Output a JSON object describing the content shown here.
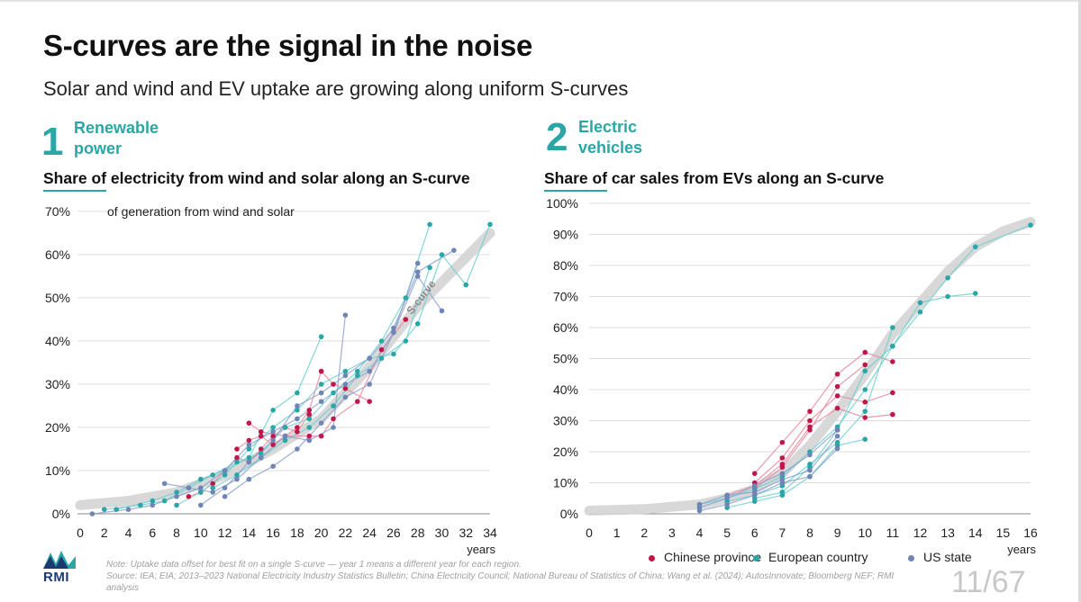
{
  "title": "S-curves are the signal in the noise",
  "subtitle": "Solar and wind and EV uptake are growing along uniform S-curves",
  "panel1": {
    "number": "1",
    "title": "Renewable power"
  },
  "panel2": {
    "number": "2",
    "title": "Electric vehicles"
  },
  "note": "Note: Uptake data offset for best fit on a single S-curve — year 1 means a different year for each region.",
  "source": "Source: IEA; EIA; 2013–2023 National Electricity Industry Statistics Bulletin; China Electricity Council; National Bureau of Statistics of China; Wang et al. (2024); AutosInnovate; Bloomberg NEF; RMI analysis",
  "logo": "RMI",
  "page_indicator": "11/67",
  "colors": {
    "accent": "#2aa6a6",
    "chinese": "#c0174a",
    "european": "#2aa6a6",
    "us": "#6f85b8",
    "scurve": "#d4d4d4"
  },
  "legend": [
    {
      "name": "Chinese province",
      "color": "#c0174a"
    },
    {
      "name": "European country",
      "color": "#2aa6a6"
    },
    {
      "name": "US state",
      "color": "#6f85b8"
    }
  ],
  "chart_data": [
    {
      "type": "line",
      "title": "Share of electricity from wind and solar along an S-curve",
      "ylabel": "of generation from wind and solar",
      "xlabel": "years",
      "xlim": [
        0,
        34
      ],
      "ylim": [
        0,
        70
      ],
      "x_ticks": [
        0,
        2,
        4,
        6,
        8,
        10,
        12,
        14,
        16,
        18,
        20,
        22,
        24,
        26,
        28,
        30,
        32,
        34
      ],
      "y_ticks": [
        0,
        10,
        20,
        30,
        40,
        50,
        60,
        70
      ],
      "y_tick_labels": [
        "0%",
        "10%",
        "20%",
        "30%",
        "40%",
        "50%",
        "60%",
        "70%"
      ],
      "annotation": "S-curve",
      "scurve": [
        [
          0,
          2
        ],
        [
          4,
          3
        ],
        [
          8,
          5
        ],
        [
          12,
          9
        ],
        [
          16,
          15
        ],
        [
          20,
          22
        ],
        [
          24,
          34
        ],
        [
          28,
          48
        ],
        [
          34,
          65
        ]
      ],
      "series": [
        {
          "group": "Chinese province",
          "points": [
            [
              13,
              15
            ],
            [
              14,
              17
            ],
            [
              15,
              18
            ],
            [
              16,
              16
            ],
            [
              18,
              20
            ],
            [
              19,
              24
            ],
            [
              20,
              33
            ],
            [
              21,
              30
            ],
            [
              22,
              29
            ],
            [
              24,
              26
            ]
          ]
        },
        {
          "group": "Chinese province",
          "points": [
            [
              14,
              21
            ],
            [
              15,
              19
            ],
            [
              17,
              18
            ],
            [
              19,
              18
            ],
            [
              20,
              18
            ],
            [
              21,
              22
            ],
            [
              23,
              26
            ],
            [
              25,
              38
            ],
            [
              27,
              45
            ]
          ]
        },
        {
          "group": "Chinese province",
          "points": [
            [
              9,
              4
            ],
            [
              10,
              5
            ],
            [
              11,
              7
            ],
            [
              12,
              10
            ],
            [
              13,
              13
            ],
            [
              14,
              12
            ],
            [
              15,
              15
            ],
            [
              16,
              18
            ],
            [
              17,
              20
            ],
            [
              18,
              19
            ],
            [
              19,
              23
            ]
          ]
        },
        {
          "group": "European country",
          "points": [
            [
              2,
              1
            ],
            [
              5,
              2
            ],
            [
              7,
              3
            ],
            [
              9,
              6
            ],
            [
              11,
              9
            ],
            [
              13,
              12
            ],
            [
              15,
              14
            ],
            [
              17,
              20
            ],
            [
              19,
              22
            ],
            [
              21,
              28
            ],
            [
              23,
              33
            ],
            [
              25,
              40
            ],
            [
              27,
              50
            ],
            [
              29,
              67
            ]
          ]
        },
        {
          "group": "European country",
          "points": [
            [
              3,
              1
            ],
            [
              6,
              3
            ],
            [
              8,
              5
            ],
            [
              10,
              8
            ],
            [
              12,
              10
            ],
            [
              14,
              13
            ],
            [
              16,
              24
            ],
            [
              18,
              28
            ],
            [
              20,
              41
            ]
          ]
        },
        {
          "group": "European country",
          "points": [
            [
              8,
              2
            ],
            [
              10,
              5
            ],
            [
              12,
              9
            ],
            [
              14,
              15
            ],
            [
              16,
              20
            ],
            [
              18,
              24
            ],
            [
              20,
              30
            ],
            [
              22,
              33
            ],
            [
              24,
              36
            ],
            [
              26,
              37
            ],
            [
              28,
              44
            ],
            [
              30,
              60
            ],
            [
              32,
              53
            ],
            [
              34,
              67
            ]
          ]
        },
        {
          "group": "European country",
          "points": [
            [
              11,
              6
            ],
            [
              13,
              9
            ],
            [
              15,
              13
            ],
            [
              17,
              17
            ],
            [
              19,
              20
            ],
            [
              21,
              25
            ],
            [
              23,
              32
            ],
            [
              25,
              36
            ],
            [
              27,
              40
            ],
            [
              29,
              57
            ]
          ]
        },
        {
          "group": "US state",
          "points": [
            [
              1,
              0
            ],
            [
              4,
              1
            ],
            [
              6,
              2
            ],
            [
              8,
              4
            ],
            [
              10,
              6
            ],
            [
              12,
              10
            ],
            [
              14,
              16
            ],
            [
              16,
              19
            ],
            [
              18,
              22
            ],
            [
              20,
              26
            ],
            [
              22,
              30
            ],
            [
              24,
              33
            ],
            [
              26,
              42
            ],
            [
              28,
              55
            ],
            [
              30,
              47
            ]
          ]
        },
        {
          "group": "US state",
          "points": [
            [
              7,
              7
            ],
            [
              9,
              6
            ],
            [
              11,
              5
            ],
            [
              13,
              8
            ],
            [
              15,
              13
            ],
            [
              17,
              18
            ],
            [
              19,
              17
            ],
            [
              21,
              20
            ],
            [
              22,
              46
            ]
          ]
        },
        {
          "group": "US state",
          "points": [
            [
              10,
              2
            ],
            [
              12,
              6
            ],
            [
              14,
              12
            ],
            [
              16,
              17
            ],
            [
              18,
              25
            ],
            [
              20,
              28
            ],
            [
              22,
              32
            ],
            [
              24,
              36
            ],
            [
              26,
              43
            ],
            [
              28,
              56
            ],
            [
              31,
              61
            ]
          ]
        },
        {
          "group": "US state",
          "points": [
            [
              12,
              4
            ],
            [
              14,
              8
            ],
            [
              16,
              11
            ],
            [
              18,
              15
            ],
            [
              20,
              21
            ],
            [
              22,
              27
            ],
            [
              24,
              30
            ],
            [
              26,
              42
            ],
            [
              28,
              58
            ]
          ]
        }
      ]
    },
    {
      "type": "line",
      "title": "Share of car sales from EVs along an S-curve",
      "xlabel": "years",
      "xlim": [
        0,
        16
      ],
      "ylim": [
        0,
        100
      ],
      "x_ticks": [
        0,
        1,
        2,
        3,
        4,
        5,
        6,
        7,
        8,
        9,
        10,
        11,
        12,
        13,
        14,
        15,
        16
      ],
      "y_ticks": [
        0,
        10,
        20,
        30,
        40,
        50,
        60,
        70,
        80,
        90,
        100
      ],
      "y_tick_labels": [
        "0%",
        "10%",
        "20%",
        "30%",
        "40%",
        "50%",
        "60%",
        "70%",
        "80%",
        "90%",
        "100%"
      ],
      "scurve": [
        [
          0,
          1
        ],
        [
          2,
          1.5
        ],
        [
          4,
          3
        ],
        [
          5,
          5
        ],
        [
          6,
          8
        ],
        [
          7,
          13
        ],
        [
          8,
          22
        ],
        [
          9,
          33
        ],
        [
          10,
          45
        ],
        [
          11,
          58
        ],
        [
          12,
          68
        ],
        [
          13,
          78
        ],
        [
          14,
          86
        ],
        [
          15,
          91
        ],
        [
          16,
          94
        ]
      ],
      "series": [
        {
          "group": "Chinese province",
          "points": [
            [
              6,
              13
            ],
            [
              7,
              23
            ],
            [
              8,
              33
            ],
            [
              9,
              45
            ],
            [
              10,
              52
            ],
            [
              11,
              49
            ]
          ]
        },
        {
          "group": "Chinese province",
          "points": [
            [
              6,
              10
            ],
            [
              7,
              18
            ],
            [
              8,
              30
            ],
            [
              9,
              38
            ],
            [
              10,
              36
            ],
            [
              11,
              39
            ]
          ]
        },
        {
          "group": "Chinese province",
          "points": [
            [
              5,
              6
            ],
            [
              6,
              9
            ],
            [
              7,
              16
            ],
            [
              8,
              28
            ],
            [
              9,
              34
            ],
            [
              10,
              31
            ],
            [
              11,
              32
            ]
          ]
        },
        {
          "group": "Chinese province",
          "points": [
            [
              6,
              8
            ],
            [
              7,
              15
            ],
            [
              8,
              27
            ],
            [
              9,
              41
            ],
            [
              10,
              48
            ]
          ]
        },
        {
          "group": "European country",
          "points": [
            [
              4,
              3
            ],
            [
              5,
              5
            ],
            [
              6,
              8
            ],
            [
              7,
              12
            ],
            [
              8,
              20
            ],
            [
              9,
              28
            ],
            [
              10,
              40
            ],
            [
              11,
              54
            ],
            [
              12,
              68
            ],
            [
              13,
              70
            ],
            [
              14,
              71
            ]
          ]
        },
        {
          "group": "European country",
          "points": [
            [
              5,
              4
            ],
            [
              6,
              6
            ],
            [
              7,
              9
            ],
            [
              8,
              16
            ],
            [
              9,
              23
            ],
            [
              10,
              33
            ],
            [
              11,
              60
            ]
          ]
        },
        {
          "group": "European country",
          "points": [
            [
              6,
              5
            ],
            [
              7,
              7
            ],
            [
              8,
              15
            ],
            [
              9,
              27
            ],
            [
              10,
              46
            ],
            [
              11,
              54
            ],
            [
              12,
              65
            ],
            [
              13,
              76
            ],
            [
              14,
              86
            ],
            [
              16,
              93
            ]
          ]
        },
        {
          "group": "European country",
          "points": [
            [
              5,
              2
            ],
            [
              6,
              4
            ],
            [
              7,
              6
            ],
            [
              8,
              12
            ],
            [
              9,
              22
            ],
            [
              10,
              24
            ]
          ]
        },
        {
          "group": "US state",
          "points": [
            [
              4,
              2
            ],
            [
              5,
              5
            ],
            [
              6,
              9
            ],
            [
              7,
              13
            ],
            [
              8,
              19
            ],
            [
              9,
              27
            ]
          ]
        },
        {
          "group": "US state",
          "points": [
            [
              4,
              3
            ],
            [
              5,
              6
            ],
            [
              6,
              7
            ],
            [
              7,
              11
            ],
            [
              8,
              14
            ],
            [
              9,
              25
            ]
          ]
        },
        {
          "group": "US state",
          "points": [
            [
              4,
              1
            ],
            [
              5,
              3
            ],
            [
              6,
              6
            ],
            [
              7,
              10
            ],
            [
              8,
              12
            ],
            [
              9,
              21
            ]
          ]
        }
      ]
    }
  ]
}
